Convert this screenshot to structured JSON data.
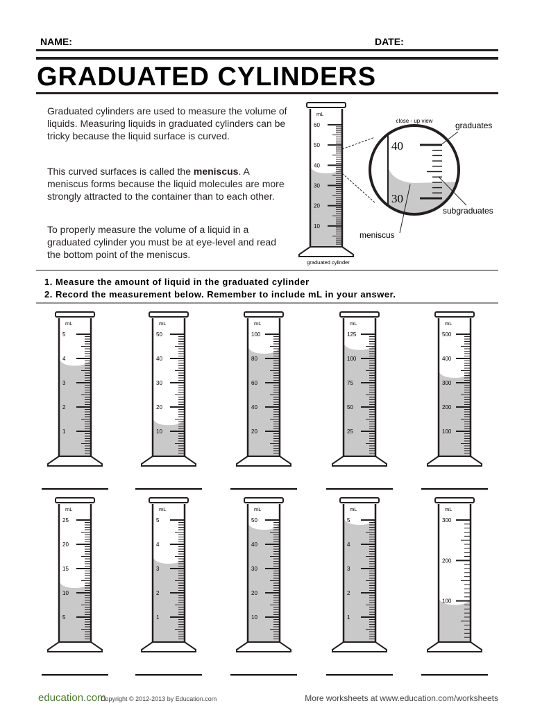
{
  "header": {
    "name_label": "NAME:",
    "date_label": "DATE:",
    "title": "GRADUATED CYLINDERS"
  },
  "intro": {
    "paragraph_1": "Graduated cylinders are used to measure the volume of liquids. Measuring liquids in graduated cylinders can be tricky because the liquid surface is curved.",
    "paragraph_2": {
      "before": "This curved surfaces is called the ",
      "bold": "meniscus",
      "after": ". A meniscus forms because the liquid molecules are more strongly attracted to the container than to each other."
    },
    "paragraph_3": "To properly measure the volume of a liquid in a graduated cylinder you must be at eye-level and read the bottom point of the meniscus."
  },
  "diagram": {
    "unit": "mL",
    "scale": [
      "10",
      "20",
      "30",
      "40",
      "50",
      "60"
    ],
    "caption": "graduated cylinder",
    "closeup_title": "close - up view",
    "closeup_scale": [
      "40",
      "30"
    ],
    "graduates": "graduates",
    "subgraduates": "subgraduates",
    "meniscus": "meniscus"
  },
  "instructions": [
    "1. Measure the amount of liquid in the graduated cylinder",
    "2. Record the measurement below. Remember to include mL in your answer."
  ],
  "cylinders": [
    {
      "unit": "mL",
      "scale": [
        "1",
        "2",
        "3",
        "4",
        "5"
      ]
    },
    {
      "unit": "mL",
      "scale": [
        "10",
        "20",
        "30",
        "40",
        "50"
      ]
    },
    {
      "unit": "mL",
      "scale": [
        "20",
        "40",
        "60",
        "80",
        "100"
      ]
    },
    {
      "unit": "mL",
      "scale": [
        "25",
        "50",
        "75",
        "100",
        "125"
      ]
    },
    {
      "unit": "mL",
      "scale": [
        "100",
        "200",
        "300",
        "400",
        "500"
      ]
    },
    {
      "unit": "mL",
      "scale": [
        "5",
        "10",
        "15",
        "20",
        "25"
      ]
    },
    {
      "unit": "mL",
      "scale": [
        "1",
        "2",
        "3",
        "4",
        "5"
      ]
    },
    {
      "unit": "mL",
      "scale": [
        "10",
        "20",
        "30",
        "40",
        "50"
      ]
    },
    {
      "unit": "mL",
      "scale": [
        "1",
        "2",
        "3",
        "4",
        "5"
      ]
    },
    {
      "unit": "mL",
      "scale": [
        "100",
        "200",
        "300"
      ]
    }
  ],
  "footer": {
    "logo": "education.com",
    "copyright": "Copyright © 2012-2013 by Education.com",
    "more": "More worksheets at www.education.com/worksheets"
  }
}
